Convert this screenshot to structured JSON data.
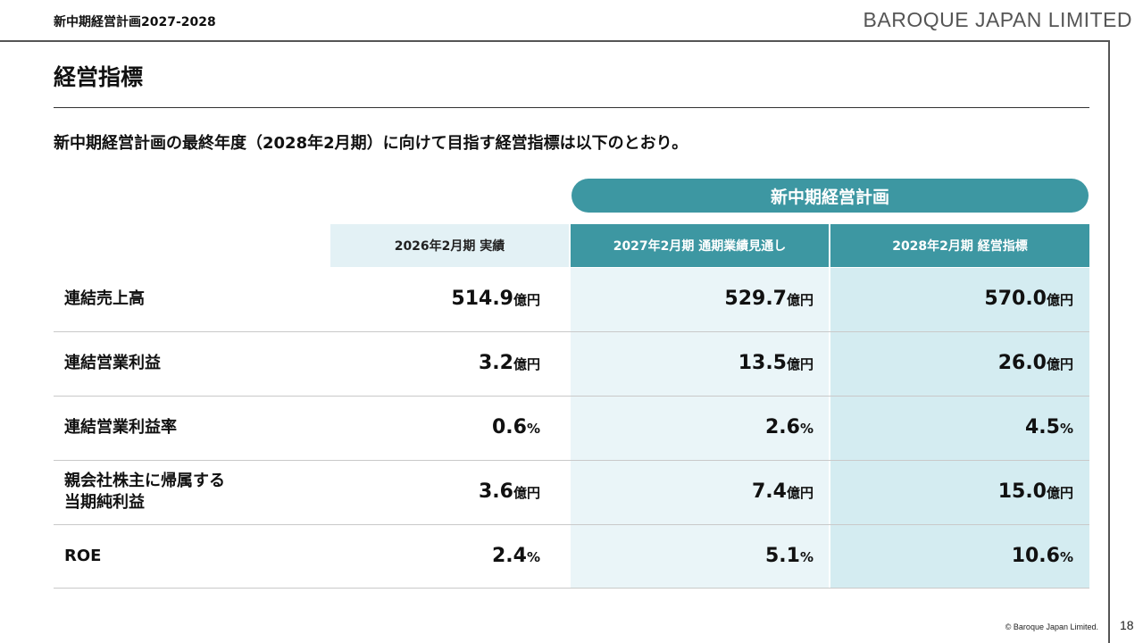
{
  "header": {
    "doc_label": "新中期経営計画2027-2028",
    "brand": "BAROQUE JAPAN LIMITED"
  },
  "section_title": "経営指標",
  "lead": "新中期経営計画の最終年度（2028年2月期）に向けて目指す経営指標は以下のとおり。",
  "table": {
    "plan_group_label": "新中期経営計画",
    "columns": [
      "2026年2月期 実績",
      "2027年2月期 通期業績見通し",
      "2028年2月期 経営指標"
    ],
    "rows": [
      {
        "label": "連結売上高",
        "values": [
          {
            "num": "514.9",
            "unit": "億円"
          },
          {
            "num": "529.7",
            "unit": "億円"
          },
          {
            "num": "570.0",
            "unit": "億円"
          }
        ]
      },
      {
        "label": "連結営業利益",
        "values": [
          {
            "num": "3.2",
            "unit": "億円"
          },
          {
            "num": "13.5",
            "unit": "億円"
          },
          {
            "num": "26.0",
            "unit": "億円"
          }
        ]
      },
      {
        "label": "連結営業利益率",
        "values": [
          {
            "num": "0.6",
            "unit": "%"
          },
          {
            "num": "2.6",
            "unit": "%"
          },
          {
            "num": "4.5",
            "unit": "%"
          }
        ]
      },
      {
        "label_line1": "親会社株主に帰属する",
        "label_line2": "当期純利益",
        "values": [
          {
            "num": "3.6",
            "unit": "億円"
          },
          {
            "num": "7.4",
            "unit": "億円"
          },
          {
            "num": "15.0",
            "unit": "億円"
          }
        ]
      },
      {
        "label": "ROE",
        "values": [
          {
            "num": "2.4",
            "unit": "%"
          },
          {
            "num": "5.1",
            "unit": "%"
          },
          {
            "num": "10.6",
            "unit": "%"
          }
        ]
      }
    ]
  },
  "footer": {
    "copyright": "© Baroque Japan Limited.",
    "page_number": "18"
  },
  "colors": {
    "accent": "#3d97a2",
    "actual_header_bg": "#e3f1f5",
    "forecast_col_bg": "#eaf5f8",
    "target_col_bg": "#d4ecf1"
  }
}
